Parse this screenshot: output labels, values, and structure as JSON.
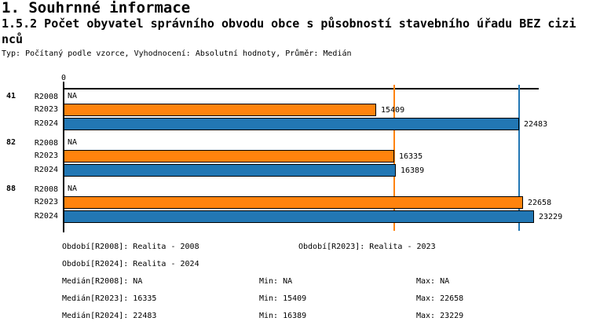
{
  "header": {
    "section_title": "1. Souhrnné informace",
    "chart_title_line1": "1.5.2 Počet obyvatel správního obvodu obce s působností stavebního úřadu BEZ cizi",
    "chart_title_line2": "nců",
    "subtitle": "Typ: Počítaný podle vzorce, Vyhodnocení: Absolutní hodnoty, Průměr: Medián"
  },
  "chart_data": {
    "type": "bar",
    "orientation": "horizontal",
    "title": "1.5.2 Počet obyvatel správního obvodu obce s působností stavebního úřadu BEZ cizinců",
    "x_axis": {
      "origin_label": "0",
      "xlim": [
        0,
        23500
      ],
      "grid": false
    },
    "series_colors": {
      "R2023": "#FF830D",
      "R2024": "#2277B4"
    },
    "groups": [
      {
        "label": "41",
        "rows": [
          {
            "series": "R2008",
            "value": null,
            "display": "NA"
          },
          {
            "series": "R2023",
            "value": 15409,
            "display": "15409"
          },
          {
            "series": "R2024",
            "value": 22483,
            "display": "22483"
          }
        ]
      },
      {
        "label": "82",
        "rows": [
          {
            "series": "R2008",
            "value": null,
            "display": "NA"
          },
          {
            "series": "R2023",
            "value": 16335,
            "display": "16335"
          },
          {
            "series": "R2024",
            "value": 16389,
            "display": "16389"
          }
        ]
      },
      {
        "label": "88",
        "rows": [
          {
            "series": "R2008",
            "value": null,
            "display": "NA"
          },
          {
            "series": "R2023",
            "value": 22658,
            "display": "22658"
          },
          {
            "series": "R2024",
            "value": 23229,
            "display": "23229"
          }
        ]
      }
    ],
    "ref_lines": [
      {
        "value": 16335,
        "color": "#FF830D"
      },
      {
        "value": 22483,
        "color": "#2277B4"
      }
    ]
  },
  "legend": {
    "period_lines": [
      {
        "left": "Období[R2008]: Realita - 2008",
        "right": "Období[R2023]: Realita - 2023"
      },
      {
        "left": "Období[R2024]: Realita - 2024",
        "right": ""
      }
    ],
    "stat_lines": [
      {
        "median": "Medián[R2008]: NA",
        "min": "Min: NA",
        "max": "Max: NA"
      },
      {
        "median": "Medián[R2023]: 16335",
        "min": "Min: 15409",
        "max": "Max: 22658"
      },
      {
        "median": "Medián[R2024]: 22483",
        "min": "Min: 16389",
        "max": "Max: 23229"
      }
    ]
  },
  "colors": {
    "bar_r2023": "#FF830D",
    "bar_r2024": "#2277B4",
    "axis": "#000000",
    "background": "#FFFFFF"
  }
}
